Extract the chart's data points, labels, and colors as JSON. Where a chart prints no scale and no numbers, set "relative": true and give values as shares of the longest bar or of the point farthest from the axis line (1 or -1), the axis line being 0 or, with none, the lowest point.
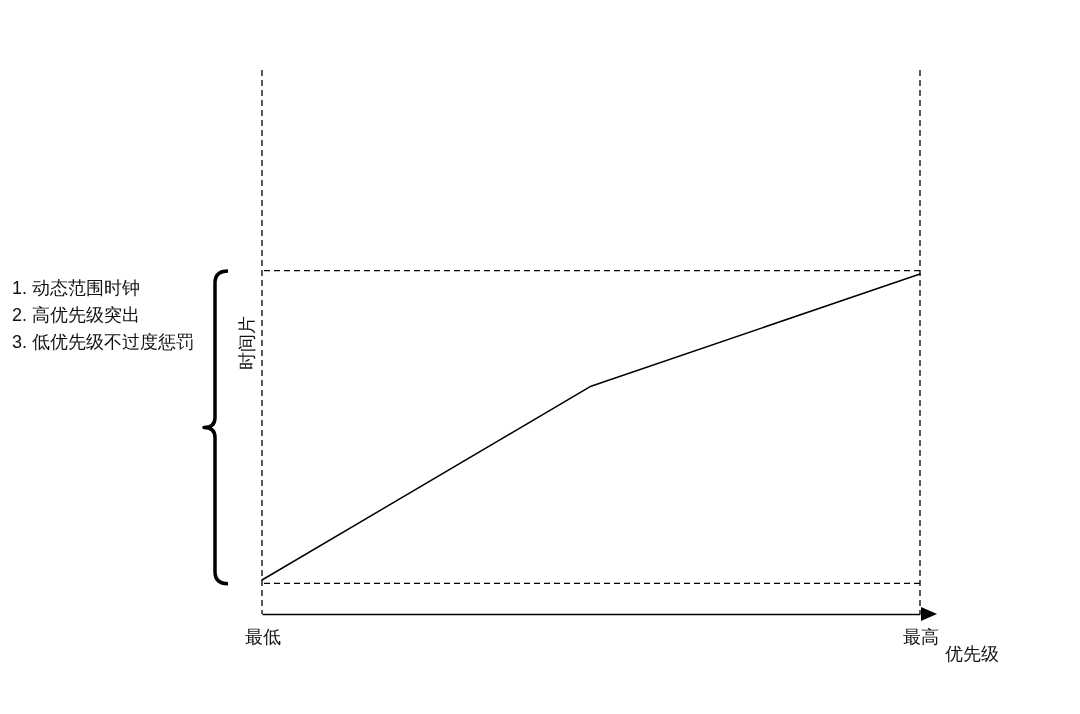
{
  "chart_data": {
    "type": "line",
    "relative": true,
    "categories": [
      "最低",
      null,
      "最高"
    ],
    "series": [
      {
        "color": "#000000",
        "values": [
          0.1,
          0.67,
          1
        ]
      }
    ],
    "xlabel": "优先级",
    "ylabel": "时间片",
    "annotations": [
      "1. 动态范围时钟",
      "2. 高优先级突出",
      "3. 低优先级不过度惩罚"
    ],
    "ref_lines": [
      {
        "axis": "x",
        "value": "最低",
        "color": "#000000",
        "line_style": "dashed"
      },
      {
        "axis": "x",
        "value": "最高",
        "color": "#000000",
        "line_style": "dashed"
      },
      {
        "axis": "y",
        "value": 0.09,
        "color": "#000000",
        "line_style": "dashed"
      },
      {
        "axis": "y",
        "value": 1.01,
        "color": "#000000",
        "line_style": "dashed"
      }
    ],
    "grid": false,
    "legend": false,
    "line_style": "solid"
  }
}
